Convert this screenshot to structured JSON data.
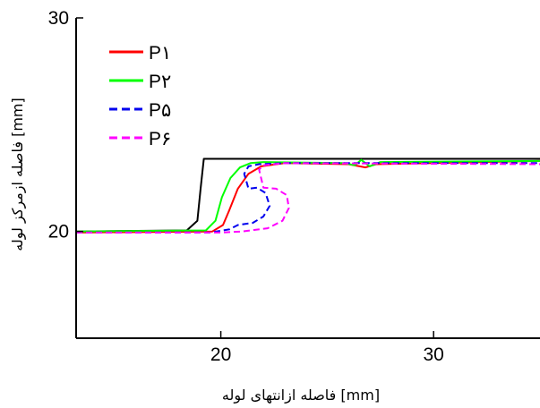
{
  "chart_data": {
    "type": "line",
    "xlabel": "[mm] فاصله ازانتهای لوله",
    "ylabel": "[mm] فاصله ازمرکز لوله",
    "xlim": [
      13.2,
      35
    ],
    "ylim": [
      15,
      30
    ],
    "x_ticks": [
      "20",
      "30"
    ],
    "y_ticks": [
      "20",
      "30"
    ],
    "grid": false,
    "legend_position": "top-left",
    "series": [
      {
        "name": "",
        "color": "#000000",
        "dash": "solid",
        "x": [
          13.2,
          18.4,
          18.9,
          19.05,
          19.2,
          27.0,
          35.0
        ],
        "y": [
          20.0,
          20.05,
          20.5,
          22.0,
          23.4,
          23.4,
          23.4
        ]
      },
      {
        "name": "P۱",
        "color": "#ff0000",
        "dash": "solid",
        "x": [
          13.2,
          19.6,
          20.1,
          20.4,
          20.8,
          21.3,
          21.9,
          23.0,
          26.0,
          26.8,
          27.3,
          35.0
        ],
        "y": [
          19.95,
          20.0,
          20.3,
          21.0,
          22.0,
          22.7,
          23.05,
          23.2,
          23.15,
          23.0,
          23.15,
          23.3
        ]
      },
      {
        "name": "P۲",
        "color": "#00ff00",
        "dash": "solid",
        "x": [
          13.2,
          19.3,
          19.75,
          20.05,
          20.45,
          20.9,
          21.4,
          22.0,
          25.8,
          26.3,
          26.6,
          27.0,
          27.5,
          35.0
        ],
        "y": [
          20.0,
          20.05,
          20.5,
          21.6,
          22.5,
          23.0,
          23.2,
          23.25,
          23.2,
          23.1,
          23.35,
          23.05,
          23.25,
          23.3
        ]
      },
      {
        "name": "P۵",
        "color": "#0000ee",
        "dash": "dashed",
        "x": [
          13.2,
          19.5,
          20.4,
          20.8,
          21.5,
          22.0,
          22.3,
          22.1,
          21.7,
          21.3,
          21.1,
          21.3,
          21.8,
          23.0,
          35.0
        ],
        "y": [
          19.95,
          19.95,
          20.1,
          20.3,
          20.4,
          20.7,
          21.2,
          21.8,
          22.05,
          22.0,
          22.7,
          23.05,
          23.15,
          23.2,
          23.2
        ]
      },
      {
        "name": "P۶",
        "color": "#ff00ff",
        "dash": "dashed",
        "x": [
          13.2,
          20.0,
          21.0,
          22.2,
          22.9,
          23.2,
          23.1,
          22.6,
          22.0,
          21.8,
          22.0,
          23.0,
          35.0
        ],
        "y": [
          19.95,
          19.95,
          20.0,
          20.15,
          20.5,
          21.1,
          21.7,
          22.0,
          22.05,
          22.9,
          23.1,
          23.2,
          23.15
        ]
      }
    ]
  }
}
